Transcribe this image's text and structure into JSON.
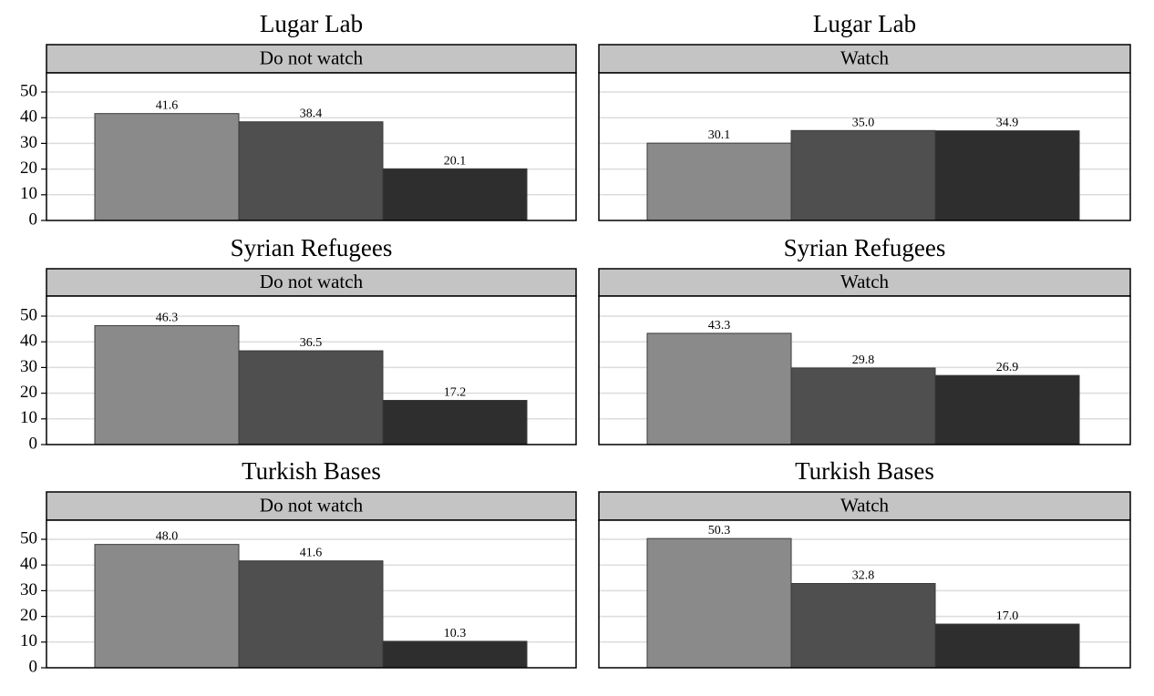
{
  "chart_data": [
    {
      "type": "bar",
      "title": "Lugar Lab",
      "facet": "Do not watch",
      "values": [
        41.6,
        38.4,
        20.1
      ],
      "data_labels": [
        "41.6",
        "38.4",
        "20.1"
      ],
      "ylim": [
        0,
        55
      ],
      "yticks": [
        "0",
        "10",
        "20",
        "30",
        "40",
        "50"
      ],
      "grid": true
    },
    {
      "type": "bar",
      "title": "Lugar Lab",
      "facet": "Watch",
      "values": [
        30.1,
        35.0,
        34.9
      ],
      "data_labels": [
        "30.1",
        "35.0",
        "34.9"
      ],
      "ylim": [
        0,
        55
      ],
      "yticks": [
        "0",
        "10",
        "20",
        "30",
        "40",
        "50"
      ],
      "grid": true
    },
    {
      "type": "bar",
      "title": "Syrian Refugees",
      "facet": "Do not watch",
      "values": [
        46.3,
        36.5,
        17.2
      ],
      "data_labels": [
        "46.3",
        "36.5",
        "17.2"
      ],
      "ylim": [
        0,
        55
      ],
      "yticks": [
        "0",
        "10",
        "20",
        "30",
        "40",
        "50"
      ],
      "grid": true
    },
    {
      "type": "bar",
      "title": "Syrian Refugees",
      "facet": "Watch",
      "values": [
        43.3,
        29.8,
        26.9
      ],
      "data_labels": [
        "43.3",
        "29.8",
        "26.9"
      ],
      "ylim": [
        0,
        55
      ],
      "yticks": [
        "0",
        "10",
        "20",
        "30",
        "40",
        "50"
      ],
      "grid": true
    },
    {
      "type": "bar",
      "title": "Turkish Bases",
      "facet": "Do not watch",
      "values": [
        48.0,
        41.6,
        10.3
      ],
      "data_labels": [
        "48.0",
        "41.6",
        "10.3"
      ],
      "ylim": [
        0,
        55
      ],
      "yticks": [
        "0",
        "10",
        "20",
        "30",
        "40",
        "50"
      ],
      "grid": true
    },
    {
      "type": "bar",
      "title": "Turkish Bases",
      "facet": "Watch",
      "values": [
        50.3,
        32.8,
        17.0
      ],
      "data_labels": [
        "50.3",
        "32.8",
        "17.0"
      ],
      "ylim": [
        0,
        55
      ],
      "yticks": [
        "0",
        "10",
        "20",
        "30",
        "40",
        "50"
      ],
      "grid": true
    }
  ],
  "colors": {
    "bars": [
      "#8a8a8a",
      "#4f4f4f",
      "#2e2e2e"
    ],
    "strip_fill": "#c4c4c4",
    "gridline": "#dcdcdc",
    "frame": "#000000"
  }
}
